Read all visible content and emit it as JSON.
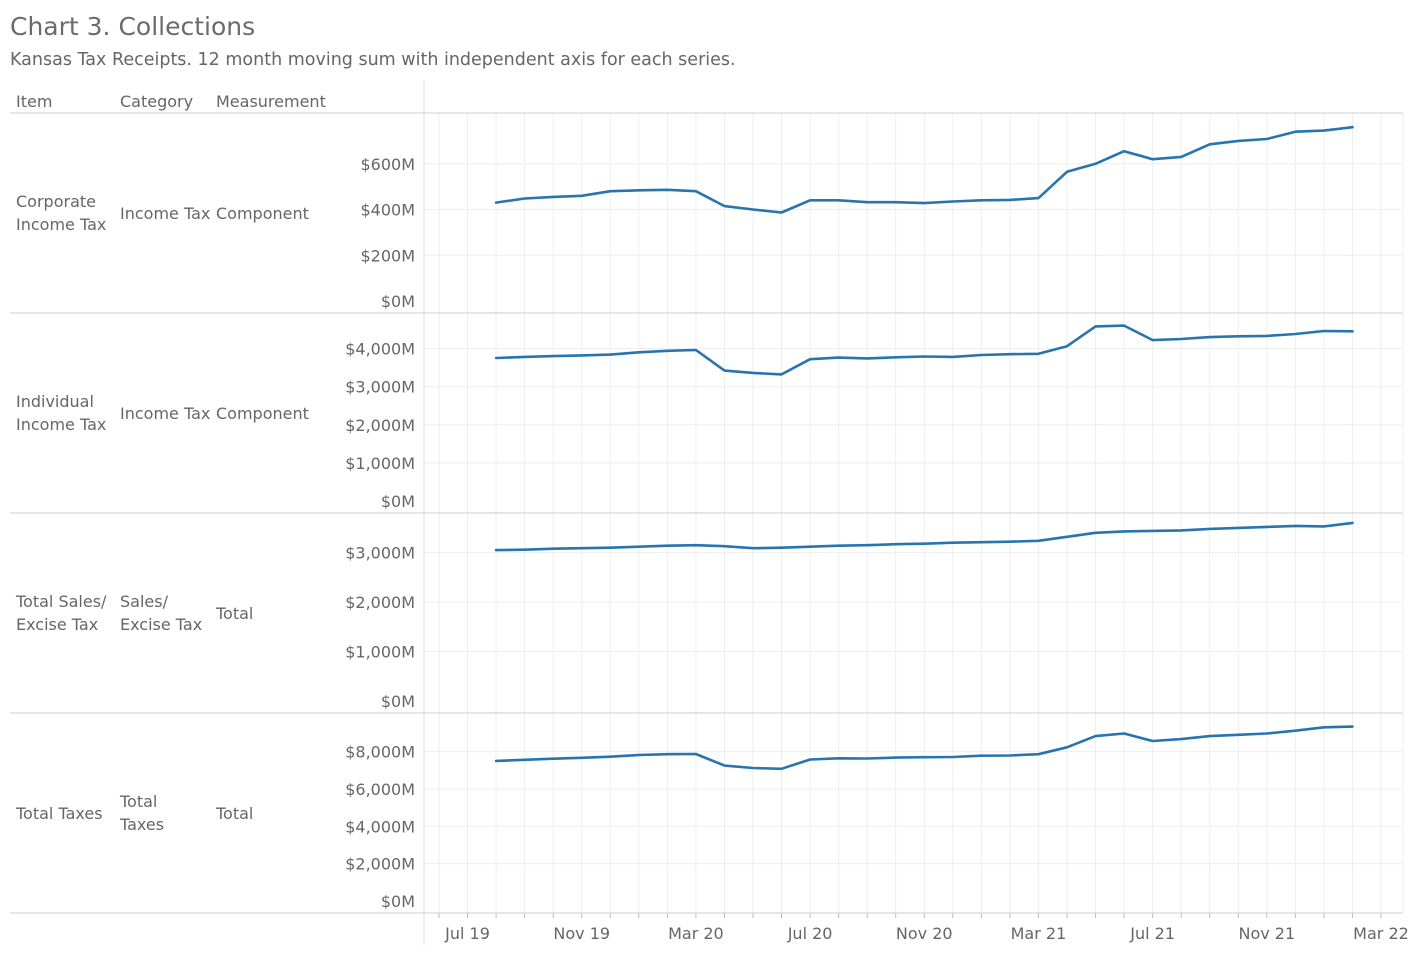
{
  "title": "Chart 3. Collections",
  "subtitle": "Kansas Tax Receipts. 12 month moving sum with independent axis for each series.",
  "headers": {
    "item": "Item",
    "category": "Category",
    "measurement": "Measurement"
  },
  "colors": {
    "line": "#2774ae",
    "grid": "#eeeeee",
    "divider": "#cccccc",
    "text": "#666666"
  },
  "chart_data": {
    "type": "line",
    "title": "Chart 3. Collections",
    "subtitle": "Kansas Tax Receipts. 12 month moving sum with independent axis for each series.",
    "x_tick_labels": [
      "Jul 19",
      "Nov 19",
      "Mar 20",
      "Jul 20",
      "Nov 20",
      "Mar 21",
      "Jul 21",
      "Nov 21",
      "Mar 22"
    ],
    "x_range": [
      "2019-06",
      "2022-03"
    ],
    "x": [
      "2019-08",
      "2019-09",
      "2019-10",
      "2019-11",
      "2019-12",
      "2020-01",
      "2020-02",
      "2020-03",
      "2020-04",
      "2020-05",
      "2020-06",
      "2020-07",
      "2020-08",
      "2020-09",
      "2020-10",
      "2020-11",
      "2020-12",
      "2021-01",
      "2021-02",
      "2021-03",
      "2021-04",
      "2021-05",
      "2021-06",
      "2021-07",
      "2021-08",
      "2021-09",
      "2021-10",
      "2021-11",
      "2021-12",
      "2022-01",
      "2022-02"
    ],
    "grid": true,
    "panels": [
      {
        "item": "Corporate Income Tax",
        "item_lines": [
          "Corporate",
          "Income Tax"
        ],
        "category": "Income Tax",
        "category_lines": [
          "Income Tax"
        ],
        "measurement": "Component",
        "ylim": [
          0,
          800
        ],
        "y_ticks": [
          0,
          200,
          400,
          600
        ],
        "y_tick_labels": [
          "$0M",
          "$200M",
          "$400M",
          "$600M"
        ],
        "values": [
          430,
          448,
          455,
          460,
          480,
          484,
          486,
          480,
          415,
          400,
          387,
          440,
          440,
          432,
          432,
          428,
          435,
          440,
          442,
          450,
          565,
          600,
          655,
          620,
          630,
          685,
          700,
          708,
          740,
          745,
          760
        ]
      },
      {
        "item": "Individual Income Tax",
        "item_lines": [
          "Individual",
          "Income Tax"
        ],
        "category": "Income Tax",
        "category_lines": [
          "Income Tax"
        ],
        "measurement": "Component",
        "ylim": [
          0,
          4800
        ],
        "y_ticks": [
          0,
          1000,
          2000,
          3000,
          4000
        ],
        "y_tick_labels": [
          "$0M",
          "$1,000M",
          "$2,000M",
          "$3,000M",
          "$4,000M"
        ],
        "values": [
          3750,
          3780,
          3800,
          3820,
          3840,
          3900,
          3940,
          3960,
          3420,
          3360,
          3320,
          3720,
          3760,
          3740,
          3770,
          3790,
          3780,
          3830,
          3850,
          3860,
          4060,
          4580,
          4600,
          4220,
          4250,
          4300,
          4320,
          4330,
          4380,
          4460,
          4450
        ]
      },
      {
        "item": "Total Sales/ Excise Tax",
        "item_lines": [
          "Total Sales/",
          "Excise Tax"
        ],
        "category": "Sales/ Excise Tax",
        "category_lines": [
          "Sales/",
          "Excise Tax"
        ],
        "measurement": "Total",
        "ylim": [
          0,
          3700
        ],
        "y_ticks": [
          0,
          1000,
          2000,
          3000
        ],
        "y_tick_labels": [
          "$0M",
          "$1,000M",
          "$2,000M",
          "$3,000M"
        ],
        "values": [
          3050,
          3060,
          3080,
          3090,
          3100,
          3120,
          3140,
          3150,
          3130,
          3090,
          3100,
          3120,
          3140,
          3150,
          3170,
          3180,
          3200,
          3210,
          3220,
          3240,
          3320,
          3400,
          3430,
          3440,
          3450,
          3480,
          3500,
          3520,
          3540,
          3530,
          3600
        ]
      },
      {
        "item": "Total Taxes",
        "item_lines": [
          "Total Taxes"
        ],
        "category": "Total Taxes",
        "category_lines": [
          "Total",
          "Taxes"
        ],
        "measurement": "Total",
        "ylim": [
          0,
          9800
        ],
        "y_ticks": [
          0,
          2000,
          4000,
          6000,
          8000
        ],
        "y_tick_labels": [
          "$0M",
          "$2,000M",
          "$4,000M",
          "$6,000M",
          "$8,000M"
        ],
        "values": [
          7500,
          7560,
          7620,
          7670,
          7730,
          7820,
          7860,
          7870,
          7250,
          7120,
          7080,
          7580,
          7640,
          7630,
          7680,
          7700,
          7710,
          7780,
          7790,
          7860,
          8230,
          8830,
          8970,
          8570,
          8670,
          8830,
          8900,
          8970,
          9120,
          9300,
          9340
        ]
      }
    ]
  }
}
